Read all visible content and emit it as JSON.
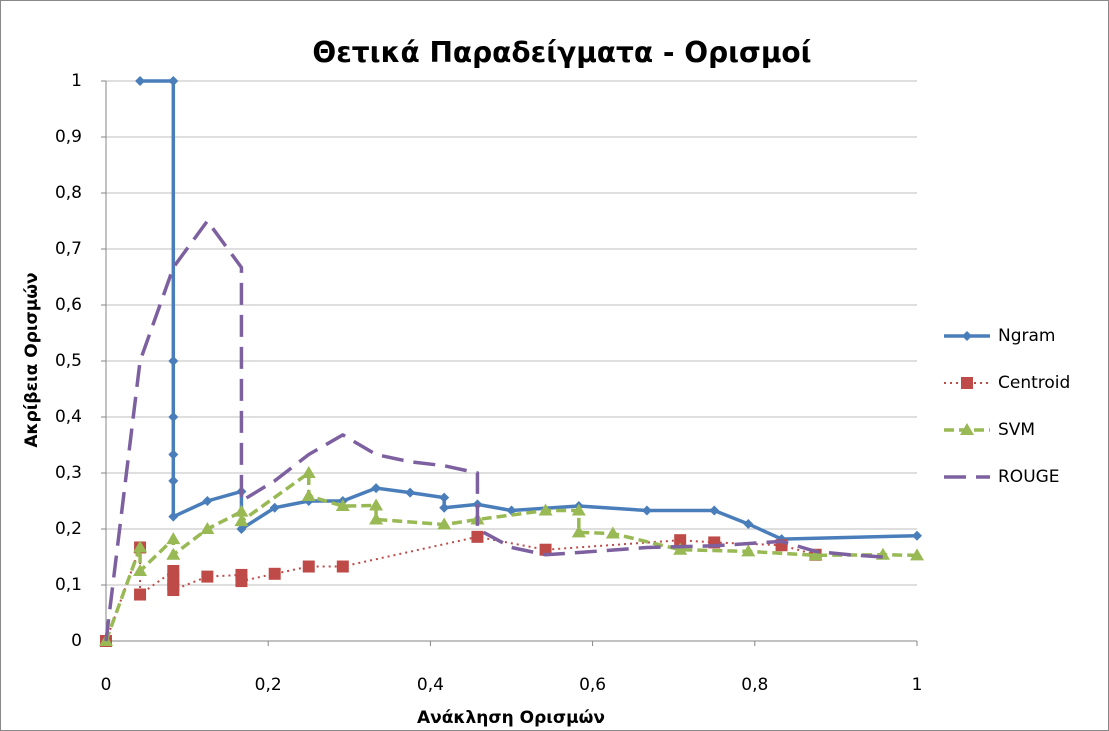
{
  "chart_data": {
    "type": "line",
    "title": "Θετικά Παραδείγματα - Ορισμοί",
    "x_label": "Ανάκληση Ορισμών",
    "y_label": "Ακρίβεια Ορισμών",
    "xlim": [
      0,
      1
    ],
    "ylim": [
      0,
      1
    ],
    "xticks": [
      0,
      {
        "value": 0.2,
        "label": "0,2"
      },
      {
        "value": 0.4,
        "label": "0,4"
      },
      {
        "value": 0.6,
        "label": "0,6"
      },
      {
        "value": 0.8,
        "label": "0,8"
      },
      1
    ],
    "yticks": [
      0,
      {
        "value": 0.1,
        "label": "0,1"
      },
      {
        "value": 0.2,
        "label": "0,2"
      },
      {
        "value": 0.3,
        "label": "0,3"
      },
      {
        "value": 0.4,
        "label": "0,4"
      },
      {
        "value": 0.5,
        "label": "0,5"
      },
      {
        "value": 0.6,
        "label": "0,6"
      },
      {
        "value": 0.7,
        "label": "0,7"
      },
      {
        "value": 0.8,
        "label": "0,8"
      },
      {
        "value": 0.9,
        "label": "0,9"
      },
      1
    ],
    "grid": true,
    "legend": "right",
    "series": [
      {
        "name": "Ngram",
        "color": "#4a7ebb",
        "line_style": "solid",
        "marker": "diamond",
        "x": [
          0.042,
          0.083,
          0.083,
          0.083,
          0.083,
          0.083,
          0.083,
          0.125,
          0.167,
          0.167,
          0.208,
          0.25,
          0.292,
          0.333,
          0.375,
          0.417,
          0.417,
          0.458,
          0.5,
          0.583,
          0.667,
          0.75,
          0.792,
          0.833,
          1.0
        ],
        "values": [
          1.0,
          1.0,
          0.5,
          0.4,
          0.333,
          0.286,
          0.222,
          0.25,
          0.267,
          0.2,
          0.238,
          0.25,
          0.25,
          0.273,
          0.265,
          0.256,
          0.238,
          0.244,
          0.233,
          0.241,
          0.233,
          0.233,
          0.209,
          0.182,
          0.188
        ]
      },
      {
        "name": "Centroid",
        "color": "#be4b48",
        "line_style": "dotted",
        "marker": "square",
        "x": [
          0,
          0.042,
          0.042,
          0.083,
          0.083,
          0.083,
          0.083,
          0.125,
          0.167,
          0.167,
          0.208,
          0.25,
          0.292,
          0.458,
          0.542,
          0.708,
          0.75,
          0.833,
          0.875
        ],
        "values": [
          0,
          0.167,
          0.083,
          0.125,
          0.111,
          0.1,
          0.091,
          0.115,
          0.118,
          0.107,
          0.12,
          0.133,
          0.133,
          0.186,
          0.163,
          0.18,
          0.176,
          0.171,
          0.154
        ]
      },
      {
        "name": "SVM",
        "color": "#98b954",
        "line_style": "dashed",
        "marker": "triangle",
        "x": [
          0,
          0.042,
          0.042,
          0.083,
          0.083,
          0.125,
          0.167,
          0.167,
          0.25,
          0.25,
          0.292,
          0.333,
          0.333,
          0.417,
          0.458,
          0.542,
          0.583,
          0.583,
          0.625,
          0.708,
          0.792,
          0.875,
          0.958,
          1.0
        ],
        "values": [
          0,
          0.167,
          0.125,
          0.182,
          0.154,
          0.2,
          0.231,
          0.214,
          0.3,
          0.259,
          0.241,
          0.242,
          0.217,
          0.208,
          0.217,
          0.233,
          0.233,
          0.194,
          0.192,
          0.163,
          0.16,
          0.153,
          0.154,
          0.153
        ]
      },
      {
        "name": "ROUGE",
        "color": "#7d60a0",
        "line_style": "longdash",
        "marker": "none",
        "x": [
          0,
          0.042,
          0.083,
          0.125,
          0.167,
          0.167,
          0.208,
          0.25,
          0.292,
          0.333,
          0.375,
          0.417,
          0.458,
          0.458,
          0.5,
          0.542,
          0.583,
          0.667,
          0.75,
          0.833,
          0.875,
          0.917,
          0.958
        ],
        "values": [
          0,
          0.5,
          0.667,
          0.75,
          0.667,
          0.25,
          0.286,
          0.333,
          0.368,
          0.333,
          0.32,
          0.313,
          0.3,
          0.2,
          0.167,
          0.154,
          0.158,
          0.167,
          0.17,
          0.178,
          0.16,
          0.154,
          0.15
        ]
      }
    ]
  }
}
